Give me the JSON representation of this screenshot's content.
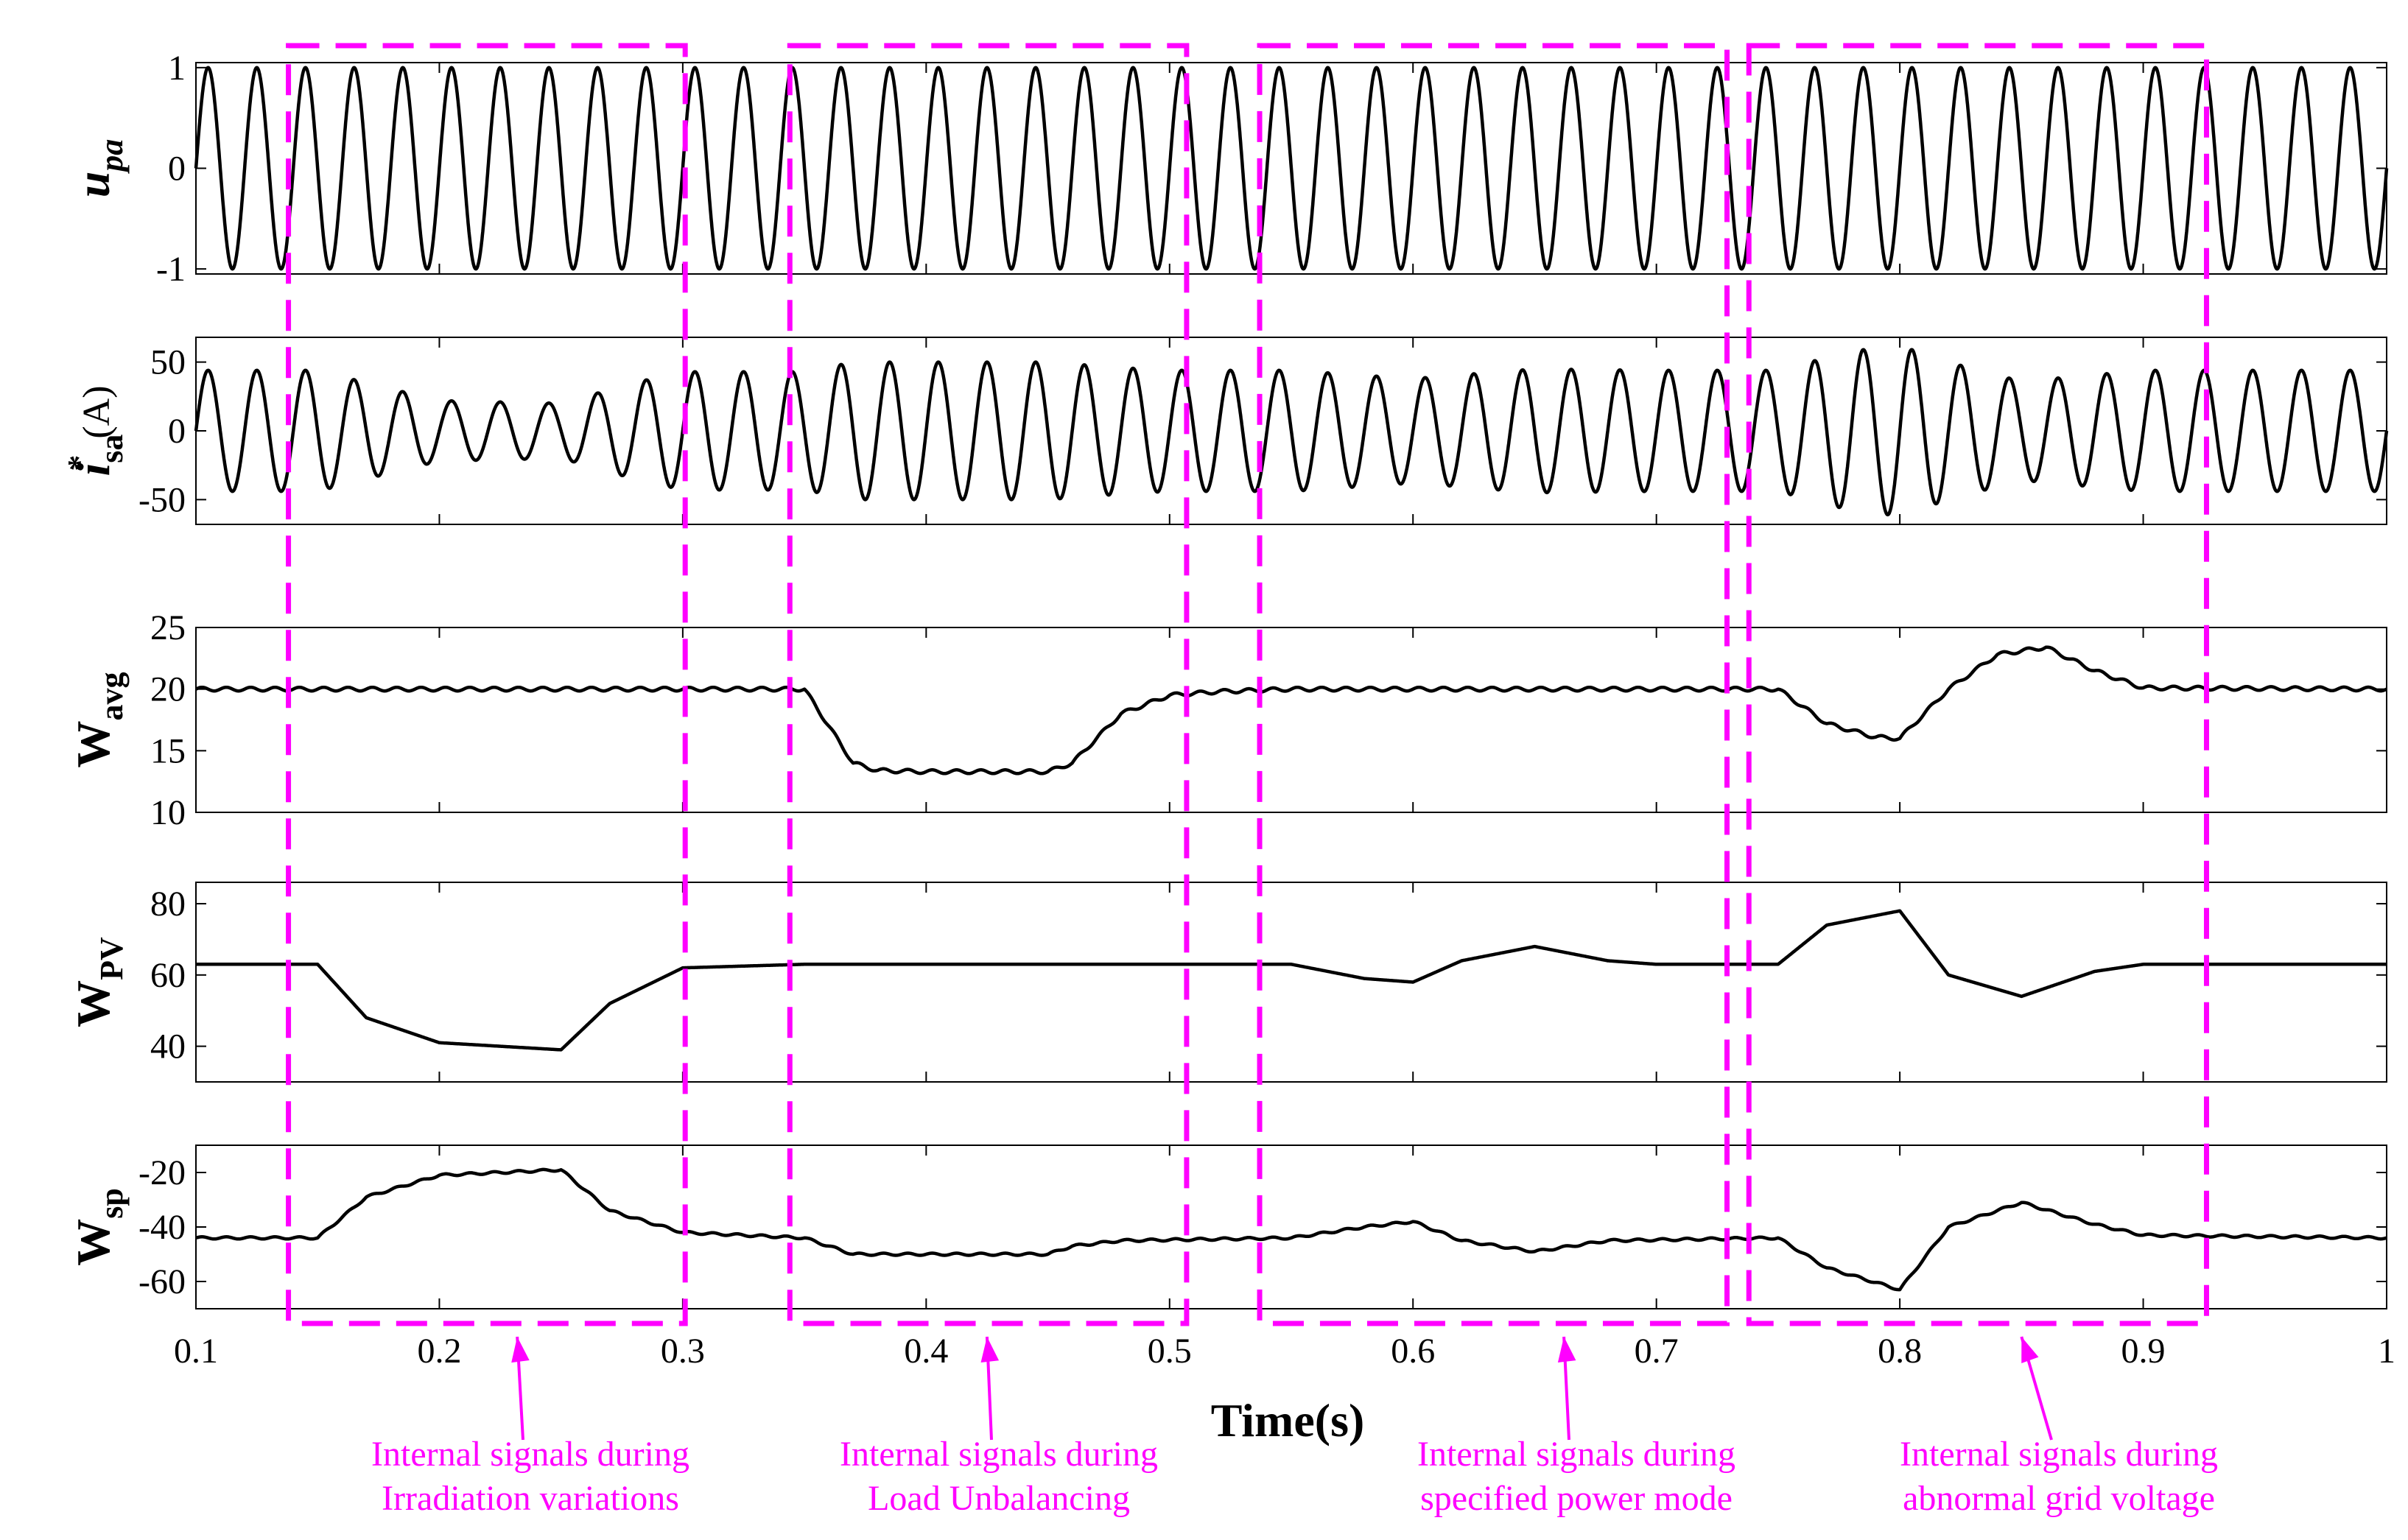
{
  "chart_data": {
    "type": "line",
    "xlabel": "Time(s)",
    "xlim": [
      0.1,
      1.0
    ],
    "xticks": [
      "0.1",
      "0.2",
      "0.3",
      "0.4",
      "0.5",
      "0.6",
      "0.7",
      "0.8",
      "0.9",
      "1"
    ],
    "accent_color": "#ff00ff",
    "grid": false,
    "panels": [
      {
        "id": "upa",
        "ylabel_main": "u",
        "ylabel_sub": "pa",
        "ylabel_unit": "",
        "ylim": [
          -1.05,
          1.05
        ],
        "yticks": [
          -1,
          0,
          1
        ],
        "ytick_labels": [
          "-1",
          "0",
          "1"
        ],
        "series": [
          {
            "type": "sine",
            "freq_hz": 50,
            "amplitude_segments": [
              {
                "x": [
                  0.1,
                  1.0
                ],
                "amp": [
                  1.0,
                  1.0
                ]
              }
            ]
          }
        ]
      },
      {
        "id": "isa",
        "ylabel_main": "i",
        "ylabel_sub": "sa",
        "ylabel_sup": "*",
        "ylabel_unit": "(A)",
        "ylim": [
          -68,
          68
        ],
        "yticks": [
          -50,
          0,
          50
        ],
        "ytick_labels": [
          "-50",
          "0",
          "50"
        ],
        "series": [
          {
            "type": "sine",
            "freq_hz": 50,
            "amplitude_points": {
              "x": [
                0.1,
                0.15,
                0.17,
                0.2,
                0.25,
                0.28,
                0.3,
                0.35,
                0.37,
                0.45,
                0.48,
                0.5,
                0.55,
                0.6,
                0.65,
                0.7,
                0.75,
                0.78,
                0.8,
                0.82,
                0.85,
                0.9,
                1.0
              ],
              "amp": [
                44,
                44,
                35,
                22,
                20,
                35,
                43,
                43,
                50,
                50,
                46,
                44,
                44,
                38,
                45,
                44,
                44,
                58,
                62,
                50,
                36,
                44,
                44
              ]
            }
          }
        ]
      },
      {
        "id": "wavg",
        "ylabel_main": "W",
        "ylabel_sub": "avg",
        "ylabel_unit": "",
        "ylim": [
          10,
          25
        ],
        "yticks": [
          10,
          15,
          20,
          25
        ],
        "ytick_labels": [
          "10",
          "15",
          "20",
          "25"
        ],
        "series": [
          {
            "type": "line",
            "ripple": 0.15,
            "ripple_freq": 100,
            "x": [
              0.1,
              0.35,
              0.36,
              0.37,
              0.38,
              0.4,
              0.45,
              0.46,
              0.47,
              0.48,
              0.5,
              0.52,
              0.55,
              0.75,
              0.77,
              0.79,
              0.8,
              0.82,
              0.84,
              0.86,
              0.88,
              0.9,
              1.0
            ],
            "y": [
              20,
              20,
              17,
              14,
              13.4,
              13.3,
              13.3,
              14,
              16,
              18,
              19.5,
              19.8,
              20,
              20,
              17.2,
              16.1,
              16,
              20,
              22.8,
              23.4,
              21.5,
              20.1,
              20
            ]
          }
        ]
      },
      {
        "id": "wpv",
        "ylabel_main": "W",
        "ylabel_sub": "PV",
        "ylabel_unit": "",
        "ylim": [
          30,
          86
        ],
        "yticks": [
          40,
          60,
          80
        ],
        "ytick_labels": [
          "40",
          "60",
          "80"
        ],
        "series": [
          {
            "type": "line",
            "ripple": 0,
            "ripple_freq": 0,
            "x": [
              0.1,
              0.15,
              0.17,
              0.2,
              0.25,
              0.27,
              0.3,
              0.35,
              0.55,
              0.58,
              0.6,
              0.62,
              0.65,
              0.68,
              0.7,
              0.75,
              0.77,
              0.8,
              0.82,
              0.85,
              0.88,
              0.9,
              1.0
            ],
            "y": [
              63,
              63,
              48,
              41,
              39,
              52,
              62,
              63,
              63,
              59,
              58,
              64,
              68,
              64,
              63,
              63,
              74,
              78,
              60,
              54,
              61,
              63,
              63
            ]
          }
        ]
      },
      {
        "id": "wsp",
        "ylabel_main": "W",
        "ylabel_sub": "sp",
        "ylabel_unit": "",
        "ylim": [
          -70,
          -10
        ],
        "yticks": [
          -60,
          -40,
          -20
        ],
        "ytick_labels": [
          "-60",
          "-40",
          "-20"
        ],
        "series": [
          {
            "type": "line",
            "ripple": 0.4,
            "ripple_freq": 100,
            "x": [
              0.1,
              0.15,
              0.17,
              0.2,
              0.25,
              0.27,
              0.3,
              0.35,
              0.36,
              0.37,
              0.45,
              0.46,
              0.48,
              0.55,
              0.58,
              0.6,
              0.62,
              0.65,
              0.68,
              0.75,
              0.77,
              0.8,
              0.82,
              0.85,
              0.88,
              0.9,
              1.0
            ],
            "y": [
              -44,
              -44,
              -29,
              -21,
              -19,
              -34,
              -42,
              -44,
              -47,
              -50,
              -50,
              -47,
              -45,
              -44,
              -40,
              -38,
              -45,
              -49,
              -45,
              -44,
              -55,
              -63,
              -40,
              -31,
              -39,
              -43,
              -44
            ]
          }
        ]
      }
    ],
    "annotations": [
      {
        "name": "irradiation",
        "box_x": [
          0.138,
          0.301
        ],
        "label_lines": [
          "Internal signals during",
          "Irradiation variations"
        ],
        "arrow_to_x": 0.232
      },
      {
        "name": "load-unbalancing",
        "box_x": [
          0.344,
          0.507
        ],
        "label_lines": [
          "Internal signals during",
          "Load Unbalancing"
        ],
        "arrow_to_x": 0.425
      },
      {
        "name": "specified-power",
        "box_x": [
          0.537,
          0.729
        ],
        "label_lines": [
          "Internal signals during",
          "specified power mode"
        ],
        "arrow_to_x": 0.662
      },
      {
        "name": "abnormal-grid",
        "box_x": [
          0.738,
          0.926
        ],
        "label_lines": [
          "Internal signals during",
          "abnormal grid voltage"
        ],
        "arrow_to_x": 0.85
      }
    ]
  }
}
